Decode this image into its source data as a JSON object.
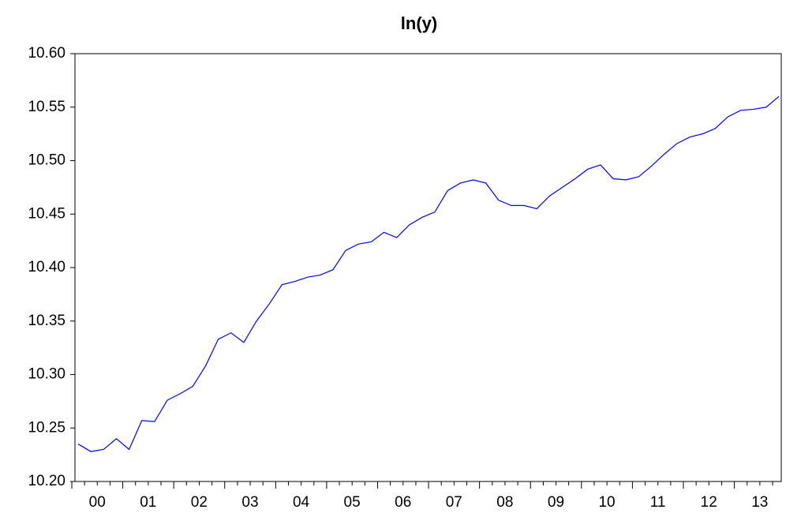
{
  "chart_data": {
    "type": "line",
    "title": "ln(y)",
    "categories": [
      "00",
      null,
      null,
      null,
      "01",
      null,
      null,
      null,
      "02",
      null,
      null,
      null,
      "03",
      null,
      null,
      null,
      "04",
      null,
      null,
      null,
      "05",
      null,
      null,
      null,
      "06",
      null,
      null,
      null,
      "07",
      null,
      null,
      null,
      "08",
      null,
      null,
      null,
      "09",
      null,
      null,
      null,
      "10",
      null,
      null,
      null,
      "11",
      null,
      null,
      null,
      "12",
      null,
      null,
      null,
      "13",
      null,
      null,
      null
    ],
    "values": [
      10.235,
      10.228,
      10.23,
      10.24,
      10.23,
      10.257,
      10.256,
      10.276,
      10.282,
      10.289,
      10.308,
      10.333,
      10.339,
      10.33,
      10.35,
      10.366,
      10.384,
      10.387,
      10.391,
      10.393,
      10.398,
      10.416,
      10.422,
      10.424,
      10.433,
      10.428,
      10.44,
      10.447,
      10.452,
      10.472,
      10.479,
      10.482,
      10.479,
      10.463,
      10.458,
      10.458,
      10.455,
      10.467,
      10.475,
      10.483,
      10.492,
      10.496,
      10.483,
      10.482,
      10.485,
      10.495,
      10.506,
      10.516,
      10.522,
      10.525,
      10.53,
      10.541,
      10.547,
      10.548,
      10.55,
      10.56
    ],
    "color": "#0000ff",
    "ylim": [
      10.2,
      10.6
    ],
    "yticks": [
      {
        "value": 10.2,
        "label": "10.20"
      },
      10.25,
      {
        "value": 10.3,
        "label": "10.30"
      },
      10.35,
      {
        "value": 10.4,
        "label": "10.40"
      },
      10.45,
      {
        "value": 10.5,
        "label": "10.50"
      },
      10.55,
      {
        "value": 10.6,
        "label": "10.60"
      }
    ]
  }
}
